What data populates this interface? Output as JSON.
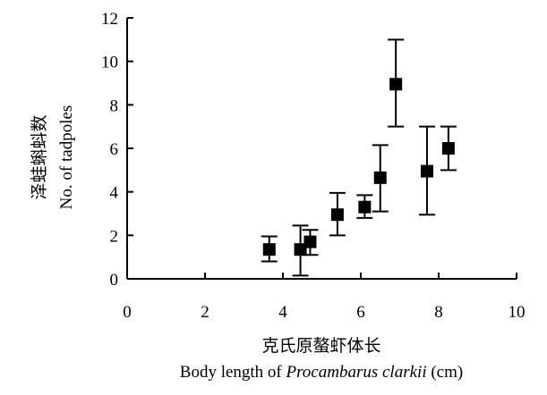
{
  "chart_data": {
    "type": "scatter",
    "title": "",
    "xlabel_zh": "克氏原螯虾体长",
    "xlabel_en_prefix": "Body length of ",
    "xlabel_en_species": "Procambarus clarkii",
    "xlabel_en_suffix": " (cm)",
    "ylabel_zh": "泽蛙蝌蚪数",
    "ylabel_en": "No. of tadpoles",
    "xlim": [
      0,
      10
    ],
    "ylim": [
      0,
      12
    ],
    "xticks": [
      0,
      2,
      4,
      6,
      8,
      10
    ],
    "yticks": [
      0,
      2,
      4,
      6,
      8,
      10,
      12
    ],
    "grid": false,
    "legend": "none",
    "marker": "square",
    "marker_color": "#000000",
    "points": [
      {
        "x": 3.65,
        "y": 1.35,
        "err_low": 0.8,
        "err_high": 1.95
      },
      {
        "x": 4.45,
        "y": 1.35,
        "err_low": 0.15,
        "err_high": 2.45
      },
      {
        "x": 4.7,
        "y": 1.7,
        "err_low": 1.1,
        "err_high": 2.25
      },
      {
        "x": 5.4,
        "y": 2.95,
        "err_low": 2.0,
        "err_high": 3.95
      },
      {
        "x": 6.1,
        "y": 3.3,
        "err_low": 2.8,
        "err_high": 3.85
      },
      {
        "x": 6.5,
        "y": 4.65,
        "err_low": 3.1,
        "err_high": 6.15
      },
      {
        "x": 6.9,
        "y": 8.95,
        "err_low": 7.0,
        "err_high": 11.0
      },
      {
        "x": 7.7,
        "y": 4.95,
        "err_low": 2.95,
        "err_high": 7.0
      },
      {
        "x": 8.25,
        "y": 6.0,
        "err_low": 5.0,
        "err_high": 7.0
      }
    ]
  }
}
